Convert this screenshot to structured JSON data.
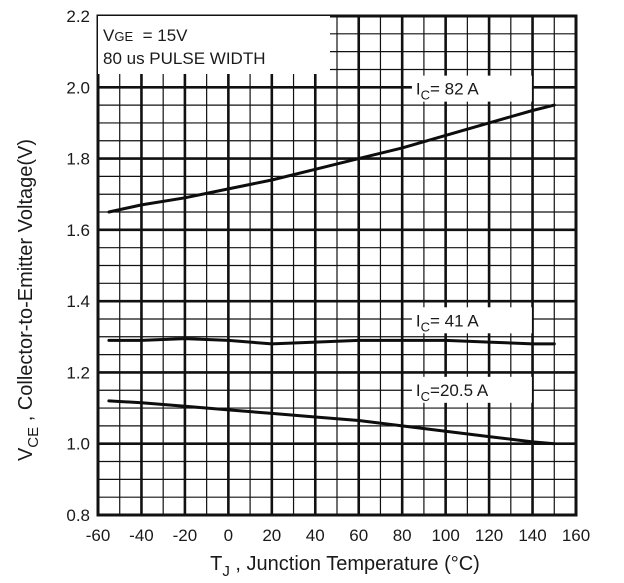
{
  "chart_data": {
    "type": "line",
    "xlabel": {
      "main": "T",
      "sub": "J",
      "rest": " , Junction Temperature (°C)"
    },
    "ylabel": {
      "main": "V",
      "sub": "CE",
      "rest": " , Collector-to-Emitter Voltage(V)"
    },
    "xlim": [
      -60,
      160
    ],
    "ylim": [
      0.8,
      2.2
    ],
    "x_ticks": [
      -60,
      -40,
      -20,
      0,
      20,
      40,
      60,
      80,
      100,
      120,
      140,
      160
    ],
    "y_ticks": [
      0.8,
      1.0,
      1.2,
      1.4,
      1.6,
      1.8,
      2.0,
      2.2
    ],
    "y_tick_labels": [
      "0.8",
      "1.0",
      "1.2",
      "1.4",
      "1.6",
      "1.8",
      "2.0",
      "2.2"
    ],
    "grid": true,
    "annotations": [
      {
        "main": "V",
        "sub": "GE",
        "rest": "  = 15V"
      },
      {
        "main": "80 us PULSE WIDTH",
        "sub": "",
        "rest": ""
      }
    ],
    "series": [
      {
        "label_main": "I",
        "label_sub": "C",
        "label_rest": "=  82 A",
        "label_x": 90,
        "label_y": 1.985,
        "x": [
          -55,
          -40,
          -20,
          0,
          20,
          40,
          60,
          80,
          100,
          120,
          140,
          150
        ],
        "y": [
          1.65,
          1.67,
          1.69,
          1.715,
          1.74,
          1.77,
          1.8,
          1.83,
          1.865,
          1.9,
          1.935,
          1.95
        ]
      },
      {
        "label_main": "I",
        "label_sub": "C",
        "label_rest": "=  41 A",
        "label_x": 90,
        "label_y": 1.335,
        "x": [
          -55,
          -40,
          -20,
          0,
          20,
          40,
          60,
          80,
          100,
          120,
          140,
          150
        ],
        "y": [
          1.29,
          1.29,
          1.295,
          1.29,
          1.28,
          1.285,
          1.29,
          1.29,
          1.29,
          1.285,
          1.28,
          1.28
        ]
      },
      {
        "label_main": "I",
        "label_sub": "C",
        "label_rest": "=20.5 A",
        "label_x": 90,
        "label_y": 1.14,
        "x": [
          -55,
          -40,
          -20,
          0,
          20,
          40,
          60,
          80,
          100,
          120,
          140,
          150
        ],
        "y": [
          1.12,
          1.115,
          1.105,
          1.095,
          1.085,
          1.075,
          1.065,
          1.05,
          1.035,
          1.02,
          1.005,
          1.0
        ]
      }
    ]
  }
}
